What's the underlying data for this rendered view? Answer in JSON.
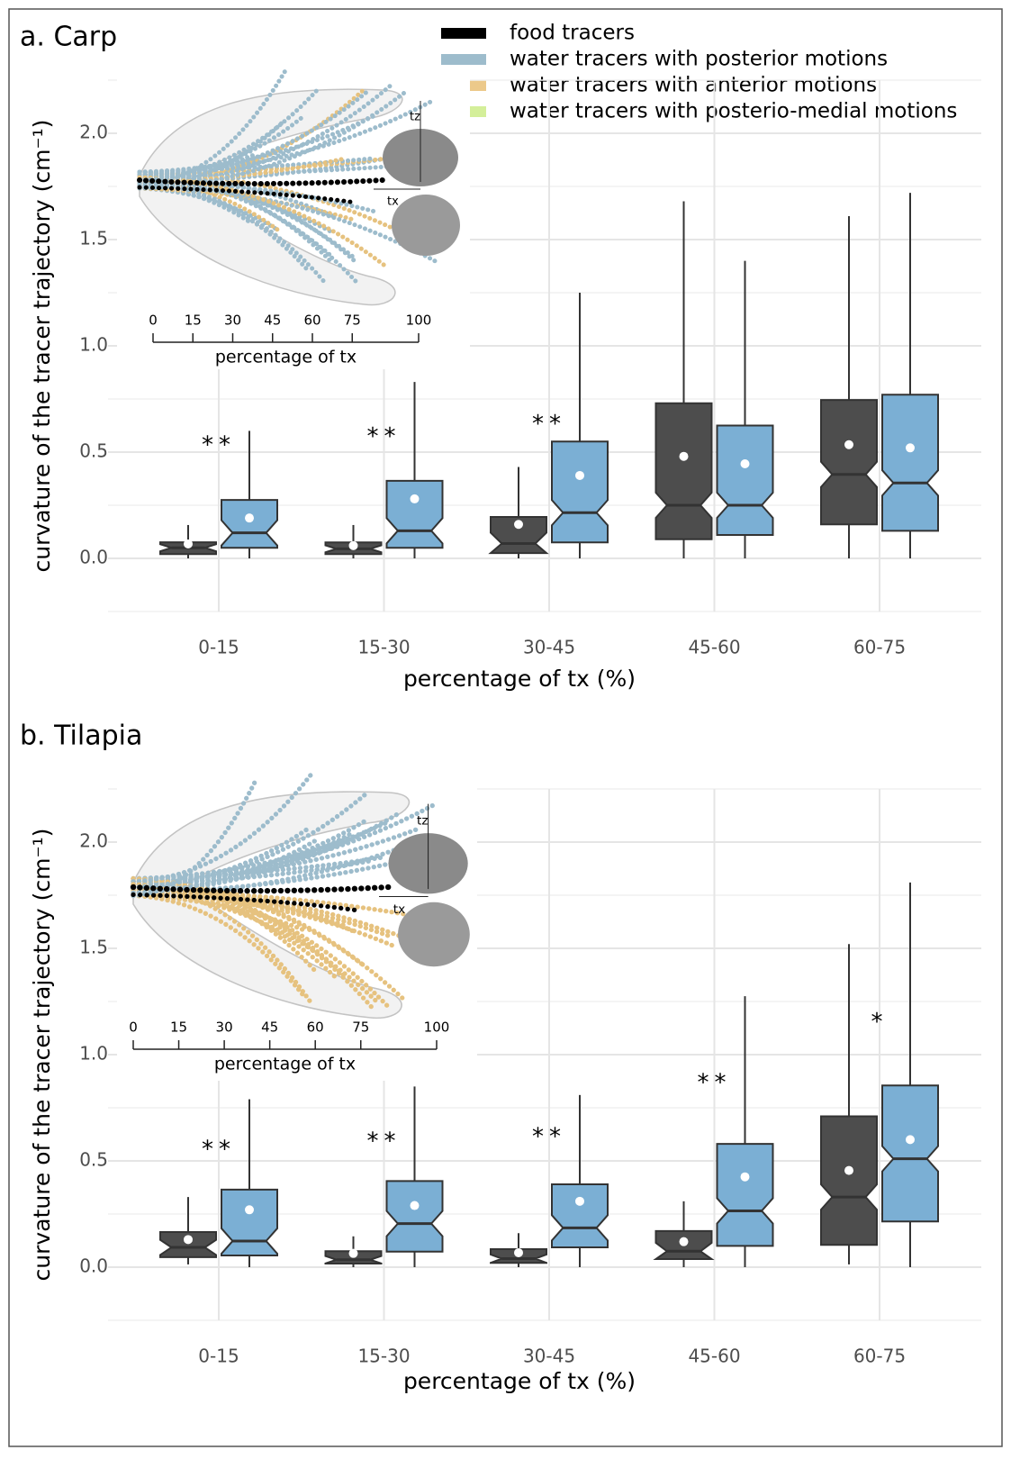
{
  "legend": [
    {
      "name": "food tracers",
      "color": "#000000"
    },
    {
      "name": "water tracers with posterior motions",
      "color": "#9dbccc"
    },
    {
      "name": "water tracers with anterior motions",
      "color": "#ecc98a"
    },
    {
      "name": "water tracers with posterio-medial motions",
      "color": "#d4ef9a"
    }
  ],
  "chart_data": [
    {
      "type": "box",
      "title": "a. Carp",
      "categories": [
        "0-15",
        "15-30",
        "30-45",
        "45-60",
        "60-75"
      ],
      "xlabel": "percentage of tx (%)",
      "ylabel": "curvature of the tracer trajectory (cm⁻¹)",
      "ylim": [
        -0.25,
        2.25
      ],
      "yticks": [
        {
          "value": 0,
          "label": "0.0"
        },
        0.5,
        {
          "value": 1,
          "label": "1.0"
        },
        1.5,
        {
          "value": 2,
          "label": "2.0"
        }
      ],
      "grid": true,
      "series": [
        {
          "color": "#4d4d4d",
          "min": [
            0,
            0,
            0,
            0,
            0
          ],
          "q1": [
            0.02,
            0.02,
            0.025,
            0.09,
            0.16
          ],
          "median": [
            0.05,
            0.045,
            0.07,
            0.25,
            0.395
          ],
          "q3": [
            0.076,
            0.075,
            0.195,
            0.73,
            0.745
          ],
          "max": [
            0.157,
            0.157,
            0.43,
            1.68,
            1.61
          ],
          "mean": [
            0.068,
            0.06,
            0.16,
            0.48,
            0.535
          ]
        },
        {
          "color": "#7bafd4",
          "min": [
            0,
            0,
            0,
            0,
            0
          ],
          "q1": [
            0.05,
            0.05,
            0.075,
            0.11,
            0.13
          ],
          "median": [
            0.12,
            0.13,
            0.215,
            0.25,
            0.355
          ],
          "q3": [
            0.275,
            0.365,
            0.55,
            0.625,
            0.77
          ],
          "max": [
            0.6,
            0.83,
            1.25,
            1.4,
            1.72
          ],
          "mean": [
            0.19,
            0.28,
            0.39,
            0.445,
            0.52
          ]
        }
      ],
      "annotations": [
        {
          "text": "**",
          "category": "0-15",
          "y": 0.53
        },
        {
          "text": "**",
          "category": "15-30",
          "y": 0.57
        },
        {
          "text": "**",
          "category": "30-45",
          "y": 0.63
        }
      ],
      "inset": {
        "xlim": [
          0,
          100
        ],
        "xticks": [
          0,
          15,
          30,
          45,
          60,
          75,
          100
        ],
        "xlabel": "percentage of tx",
        "tx_label": "tx",
        "tz_label": "tz"
      }
    },
    {
      "type": "box",
      "title": "b. Tilapia",
      "categories": [
        "0-15",
        "15-30",
        "30-45",
        "45-60",
        "60-75"
      ],
      "xlabel": "percentage of tx (%)",
      "ylabel": "curvature of the tracer trajectory (cm⁻¹)",
      "ylim": [
        -0.25,
        2.25
      ],
      "yticks": [
        {
          "value": 0,
          "label": "0.0"
        },
        0.5,
        {
          "value": 1,
          "label": "1.0"
        },
        1.5,
        {
          "value": 2,
          "label": "2.0"
        }
      ],
      "grid": true,
      "series": [
        {
          "color": "#4d4d4d",
          "min": [
            0.013,
            0,
            0,
            0,
            0.013
          ],
          "q1": [
            0.047,
            0.017,
            0.02,
            0.038,
            0.105
          ],
          "median": [
            0.093,
            0.035,
            0.04,
            0.075,
            0.33
          ],
          "q3": [
            0.165,
            0.075,
            0.085,
            0.17,
            0.71
          ],
          "max": [
            0.33,
            0.145,
            0.16,
            0.31,
            1.52
          ],
          "mean": [
            0.13,
            0.065,
            0.068,
            0.12,
            0.455
          ]
        },
        {
          "color": "#7bafd4",
          "min": [
            0,
            0,
            0,
            0,
            0
          ],
          "q1": [
            0.055,
            0.073,
            0.093,
            0.1,
            0.215
          ],
          "median": [
            0.123,
            0.205,
            0.185,
            0.265,
            0.51
          ],
          "q3": [
            0.365,
            0.405,
            0.39,
            0.58,
            0.855
          ],
          "max": [
            0.79,
            0.85,
            0.81,
            1.275,
            1.81
          ],
          "mean": [
            0.27,
            0.29,
            0.31,
            0.425,
            0.6
          ]
        }
      ],
      "annotations": [
        {
          "text": "**",
          "category": "0-15",
          "y": 0.55
        },
        {
          "text": "**",
          "category": "15-30",
          "y": 0.59
        },
        {
          "text": "**",
          "category": "30-45",
          "y": 0.61
        },
        {
          "text": "**",
          "category": "45-60",
          "y": 0.865
        },
        {
          "text": "*",
          "category": "60-75",
          "y": 1.15
        }
      ],
      "inset": {
        "xlim": [
          0,
          100
        ],
        "xticks": [
          0,
          15,
          30,
          45,
          60,
          75,
          100
        ],
        "xlabel": "percentage of tx",
        "tx_label": "tx",
        "tz_label": "tz"
      }
    }
  ]
}
